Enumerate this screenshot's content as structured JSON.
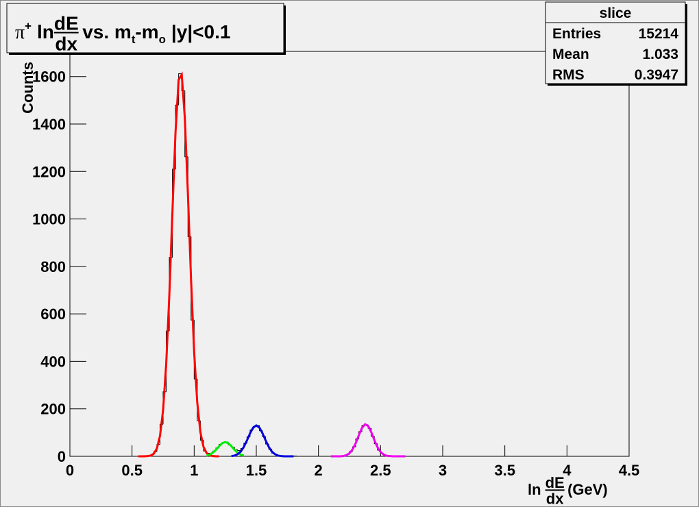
{
  "chart_data": {
    "type": "histogram",
    "title_parts": {
      "particle": "π",
      "charge": "+",
      "ln": "ln",
      "num": "dE",
      "den": "dx",
      "vs": "vs. m",
      "sub1": "t",
      "minus": "-m",
      "sub2": "o",
      "cut": "|y|<0.1"
    },
    "xlabel_parts": {
      "ln": "ln",
      "num": "dE",
      "den": "dx",
      "unit": "(GeV)"
    },
    "ylabel": "Counts",
    "bins": [
      0.6,
      0.625,
      0.65,
      0.675,
      0.7,
      0.725,
      0.75,
      0.775,
      0.8,
      0.825,
      0.85,
      0.875,
      0.9,
      0.925,
      0.95,
      0.975,
      1,
      1.025,
      1.05,
      1.075,
      1.1,
      1.125,
      1.15,
      1.175,
      1.2,
      1.225,
      1.25,
      1.275,
      1.3,
      1.325,
      1.35,
      1.375,
      1.4,
      1.425,
      1.45,
      1.475,
      1.5,
      1.525,
      1.55,
      1.575,
      1.6,
      1.625,
      1.65,
      1.675,
      1.7,
      1.725,
      1.75,
      1.775,
      1.8,
      1.825,
      1.85,
      1.875,
      1.9,
      1.925,
      1.95,
      1.975,
      2,
      2.025,
      2.05,
      2.075,
      2.1,
      2.125,
      2.15,
      2.175,
      2.2,
      2.225,
      2.25,
      2.275,
      2.3,
      2.325,
      2.35,
      2.375,
      2.4,
      2.425,
      2.45,
      2.475,
      2.5,
      2.525,
      2.55,
      2.575,
      2.6
    ],
    "values": [
      0,
      2,
      6,
      20,
      50,
      135,
      272,
      528,
      838,
      1210,
      1480,
      1612,
      1540,
      1262,
      925,
      574,
      326,
      150,
      68,
      22,
      13,
      12,
      22,
      35,
      50,
      58,
      60,
      48,
      38,
      27,
      24,
      33,
      55,
      82,
      111,
      126,
      130,
      108,
      83,
      52,
      30,
      13,
      6,
      2,
      1,
      0,
      0,
      0,
      1,
      0,
      0,
      0,
      0,
      0,
      0,
      0,
      0,
      0,
      0,
      0,
      0,
      0,
      0,
      1,
      3,
      8,
      21,
      40,
      73,
      104,
      130,
      133,
      118,
      84,
      53,
      26,
      12,
      4,
      1,
      0
    ],
    "color": "#000000",
    "fits": [
      {
        "color": "#ff0000",
        "x": [
          0.55,
          0.575,
          0.6,
          0.625,
          0.65,
          0.675,
          0.7,
          0.725,
          0.75,
          0.775,
          0.8,
          0.825,
          0.85,
          0.875,
          0.9,
          0.925,
          0.95,
          0.975,
          1,
          1.025,
          1.05,
          1.075,
          1.1,
          1.125,
          1.15,
          1.175,
          1.2
        ],
        "values": [
          0,
          0,
          0,
          1,
          3,
          11,
          33,
          86,
          195,
          389,
          677,
          1029,
          1367,
          1586,
          1608,
          1424,
          1101,
          744,
          438,
          226,
          102,
          40,
          14,
          4,
          1,
          0,
          0
        ]
      },
      {
        "color": "#00ee00",
        "x": [
          1.1,
          1.125,
          1.15,
          1.175,
          1.2,
          1.225,
          1.25,
          1.275,
          1.3,
          1.325,
          1.35,
          1.375,
          1.4
        ],
        "values": [
          3,
          7,
          15,
          27,
          42,
          55,
          60,
          55,
          42,
          27,
          15,
          7,
          3
        ]
      },
      {
        "color": "#0000dd",
        "x": [
          1.3,
          1.325,
          1.35,
          1.375,
          1.4,
          1.425,
          1.45,
          1.475,
          1.5,
          1.525,
          1.55,
          1.575,
          1.6,
          1.625,
          1.65,
          1.675,
          1.7,
          1.725,
          1.75,
          1.775,
          1.8
        ],
        "values": [
          1,
          3,
          9,
          20,
          40,
          67,
          97,
          121,
          130,
          121,
          97,
          67,
          40,
          20,
          9,
          3,
          1,
          0,
          0,
          0,
          0
        ]
      },
      {
        "color": "#ee00ee",
        "x": [
          2.1,
          2.125,
          2.15,
          2.175,
          2.2,
          2.225,
          2.25,
          2.275,
          2.3,
          2.325,
          2.35,
          2.375,
          2.4,
          2.425,
          2.45,
          2.475,
          2.5,
          2.525,
          2.55,
          2.575,
          2.6,
          2.625,
          2.65,
          2.675,
          2.7
        ],
        "values": [
          0,
          0,
          0,
          0,
          1,
          5,
          13,
          29,
          55,
          89,
          119,
          135,
          128,
          102,
          68,
          39,
          18,
          7,
          2,
          1,
          0,
          0,
          0,
          0,
          0
        ]
      }
    ],
    "xlim": [
      0,
      4.5
    ],
    "xticks": [
      0,
      0.5,
      1,
      1.5,
      2,
      2.5,
      3,
      3.5,
      4,
      4.5
    ],
    "ylim": [
      0,
      1706
    ],
    "yticks": [
      0,
      200,
      400,
      600,
      800,
      1000,
      1200,
      1400,
      1600
    ],
    "stats": {
      "title": "slice",
      "rows": [
        {
          "label": "Entries",
          "value": 15214
        },
        {
          "label": "Mean",
          "value": 1.033
        },
        {
          "label": "RMS",
          "value": 0.3947
        }
      ]
    }
  }
}
